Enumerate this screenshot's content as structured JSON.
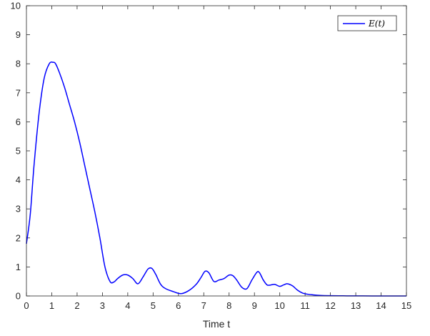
{
  "chart_data": {
    "type": "line",
    "title": "",
    "xlabel": "Time t",
    "ylabel": "",
    "xlim": [
      0,
      15
    ],
    "ylim": [
      0,
      10
    ],
    "xticks": [
      0,
      1,
      2,
      3,
      4,
      5,
      6,
      7,
      8,
      9,
      10,
      11,
      12,
      13,
      14,
      15
    ],
    "yticks": [
      0,
      1,
      2,
      3,
      4,
      5,
      6,
      7,
      8,
      9,
      10
    ],
    "grid": false,
    "legend_position": "top-right",
    "series": [
      {
        "name": "E(t)",
        "color": "#0000ff",
        "x": [
          0,
          0.15,
          0.3,
          0.5,
          0.7,
          0.9,
          1.05,
          1.15,
          1.3,
          1.5,
          1.7,
          1.9,
          2.1,
          2.3,
          2.5,
          2.7,
          2.9,
          3.1,
          3.3,
          3.45,
          3.6,
          3.8,
          4.0,
          4.2,
          4.4,
          4.6,
          4.8,
          4.95,
          5.1,
          5.3,
          5.5,
          5.8,
          6.1,
          6.4,
          6.7,
          6.9,
          7.05,
          7.2,
          7.4,
          7.6,
          7.8,
          8.0,
          8.15,
          8.3,
          8.5,
          8.7,
          8.9,
          9.1,
          9.2,
          9.35,
          9.5,
          9.65,
          9.8,
          10.0,
          10.15,
          10.3,
          10.5,
          10.7,
          10.9,
          11.1,
          11.3,
          11.6,
          12.0,
          12.5,
          13.0,
          14.0,
          15.0
        ],
        "y": [
          1.8,
          2.8,
          4.5,
          6.3,
          7.5,
          8.0,
          8.05,
          8.0,
          7.7,
          7.2,
          6.6,
          6.0,
          5.3,
          4.5,
          3.7,
          2.9,
          2.0,
          1.0,
          0.5,
          0.48,
          0.6,
          0.72,
          0.72,
          0.6,
          0.42,
          0.65,
          0.93,
          0.95,
          0.75,
          0.4,
          0.25,
          0.15,
          0.08,
          0.18,
          0.4,
          0.65,
          0.85,
          0.8,
          0.5,
          0.55,
          0.6,
          0.72,
          0.7,
          0.55,
          0.3,
          0.25,
          0.55,
          0.82,
          0.8,
          0.55,
          0.38,
          0.38,
          0.4,
          0.33,
          0.38,
          0.42,
          0.35,
          0.2,
          0.1,
          0.06,
          0.04,
          0.02,
          0.01,
          0.005,
          0.003,
          0.0,
          0.0
        ]
      }
    ]
  }
}
